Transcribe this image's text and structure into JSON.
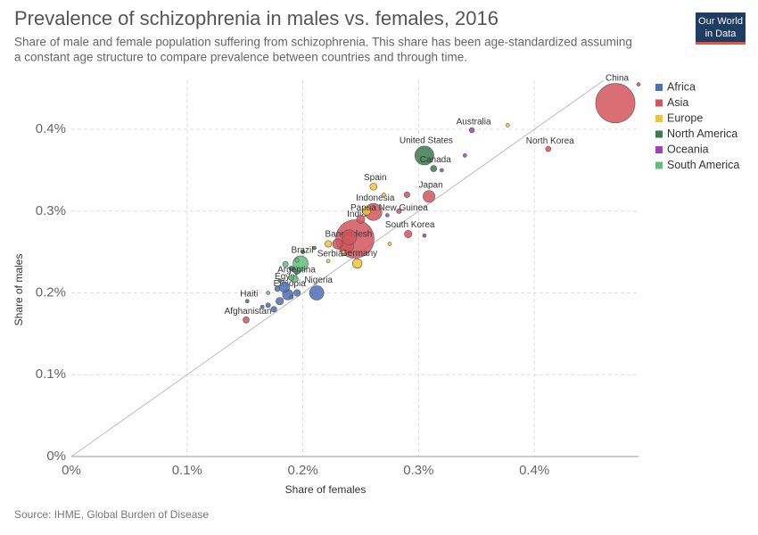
{
  "chart_data": {
    "type": "scatter",
    "title": "Prevalence of schizophrenia in males vs. females, 2016",
    "subtitle": [
      "Share of male and female population suffering from schizophrenia. This share has been age-standardized assuming",
      "a constant age structure to compare prevalence between countries and through time."
    ],
    "logo": [
      "Our World",
      "in Data"
    ],
    "source": "Source: IHME, Global Burden of Disease",
    "xlabel": "Share of females",
    "ylabel": "Share of males",
    "xlim": [
      0,
      0.49
    ],
    "ylim": [
      0,
      0.46
    ],
    "xticks": [
      {
        "value": 0,
        "label": "0%"
      },
      {
        "value": 0.1,
        "label": "0.1%"
      },
      {
        "value": 0.2,
        "label": "0.2%"
      },
      {
        "value": 0.3,
        "label": "0.3%"
      },
      {
        "value": 0.4,
        "label": "0.4%"
      }
    ],
    "yticks": [
      {
        "value": 0,
        "label": "0%"
      },
      {
        "value": 0.1,
        "label": "0.1%"
      },
      {
        "value": 0.2,
        "label": "0.2%"
      },
      {
        "value": 0.3,
        "label": "0.3%"
      },
      {
        "value": 0.4,
        "label": "0.4%"
      }
    ],
    "grid": true,
    "legend": "right",
    "series": [
      {
        "name": "Africa",
        "color": "#4c6fb5",
        "x": [
          0.212,
          0.187,
          0.184,
          0.17,
          0.175,
          0.18,
          0.19,
          0.178,
          0.165,
          0.195
        ],
        "values": [
          0.2,
          0.198,
          0.207,
          0.185,
          0.18,
          0.19,
          0.195,
          0.205,
          0.183,
          0.2
        ],
        "sizes": [
          186,
          102,
          96,
          20,
          30,
          50,
          15,
          25,
          10,
          40
        ],
        "labels": [
          "Nigeria",
          "Ethiopia",
          "Egypt",
          null,
          null,
          null,
          null,
          null,
          null,
          null
        ]
      },
      {
        "name": "Asia",
        "color": "#d2555d",
        "x": [
          0.47,
          0.245,
          0.261,
          0.309,
          0.238,
          0.291,
          0.412,
          0.151,
          0.29,
          0.24,
          0.23,
          0.25,
          0.283,
          0.49
        ],
        "values": [
          0.432,
          0.266,
          0.299,
          0.318,
          0.257,
          0.272,
          0.376,
          0.167,
          0.32,
          0.268,
          0.26,
          0.29,
          0.3,
          0.455
        ],
        "sizes": [
          1400,
          1324,
          261,
          127,
          163,
          51,
          25,
          35,
          30,
          200,
          90,
          60,
          20,
          3
        ],
        "labels": [
          "China",
          "India",
          "Indonesia",
          "Japan",
          "Bangladesh",
          "South Korea",
          "North Korea",
          "Afghanistan",
          null,
          null,
          null,
          null,
          null,
          null
        ]
      },
      {
        "name": "Europe",
        "color": "#f4c430",
        "x": [
          0.261,
          0.247,
          0.222,
          0.377,
          0.27,
          0.255,
          0.222,
          0.235,
          0.275
        ],
        "values": [
          0.33,
          0.236,
          0.239,
          0.405,
          0.32,
          0.3,
          0.26,
          0.25,
          0.26
        ],
        "sizes": [
          46,
          82,
          7,
          5,
          10,
          60,
          40,
          10,
          8
        ],
        "labels": [
          "Spain",
          "Germany",
          "Serbia",
          null,
          null,
          null,
          null,
          null,
          null
        ]
      },
      {
        "name": "North America",
        "color": "#3d7a4e",
        "x": [
          0.305,
          0.313,
          0.152,
          0.19,
          0.2,
          0.18,
          0.21,
          0.195
        ],
        "values": [
          0.368,
          0.352,
          0.19,
          0.23,
          0.25,
          0.215,
          0.255,
          0.228
        ],
        "sizes": [
          323,
          36,
          11,
          20,
          5,
          10,
          3,
          60
        ],
        "labels": [
          "United States",
          "Canada",
          "Haiti",
          null,
          null,
          null,
          null,
          null
        ]
      },
      {
        "name": "Oceania",
        "color": "#a23fbf",
        "x": [
          0.346,
          0.273,
          0.34,
          0.32,
          0.305
        ],
        "values": [
          0.399,
          0.295,
          0.368,
          0.35,
          0.27
        ],
        "sizes": [
          24,
          8,
          1,
          1,
          1
        ],
        "labels": [
          "Australia",
          "Papua New Guinea",
          null,
          null,
          null
        ]
      },
      {
        "name": "South America",
        "color": "#5fbf7c",
        "x": [
          0.198,
          0.193,
          0.185,
          0.17,
          0.19,
          0.195
        ],
        "values": [
          0.236,
          0.217,
          0.235,
          0.2,
          0.218,
          0.24
        ],
        "sizes": [
          208,
          44,
          30,
          10,
          20,
          15
        ],
        "labels": [
          "Brazil",
          "Argentina",
          null,
          null,
          null,
          null
        ]
      }
    ]
  }
}
